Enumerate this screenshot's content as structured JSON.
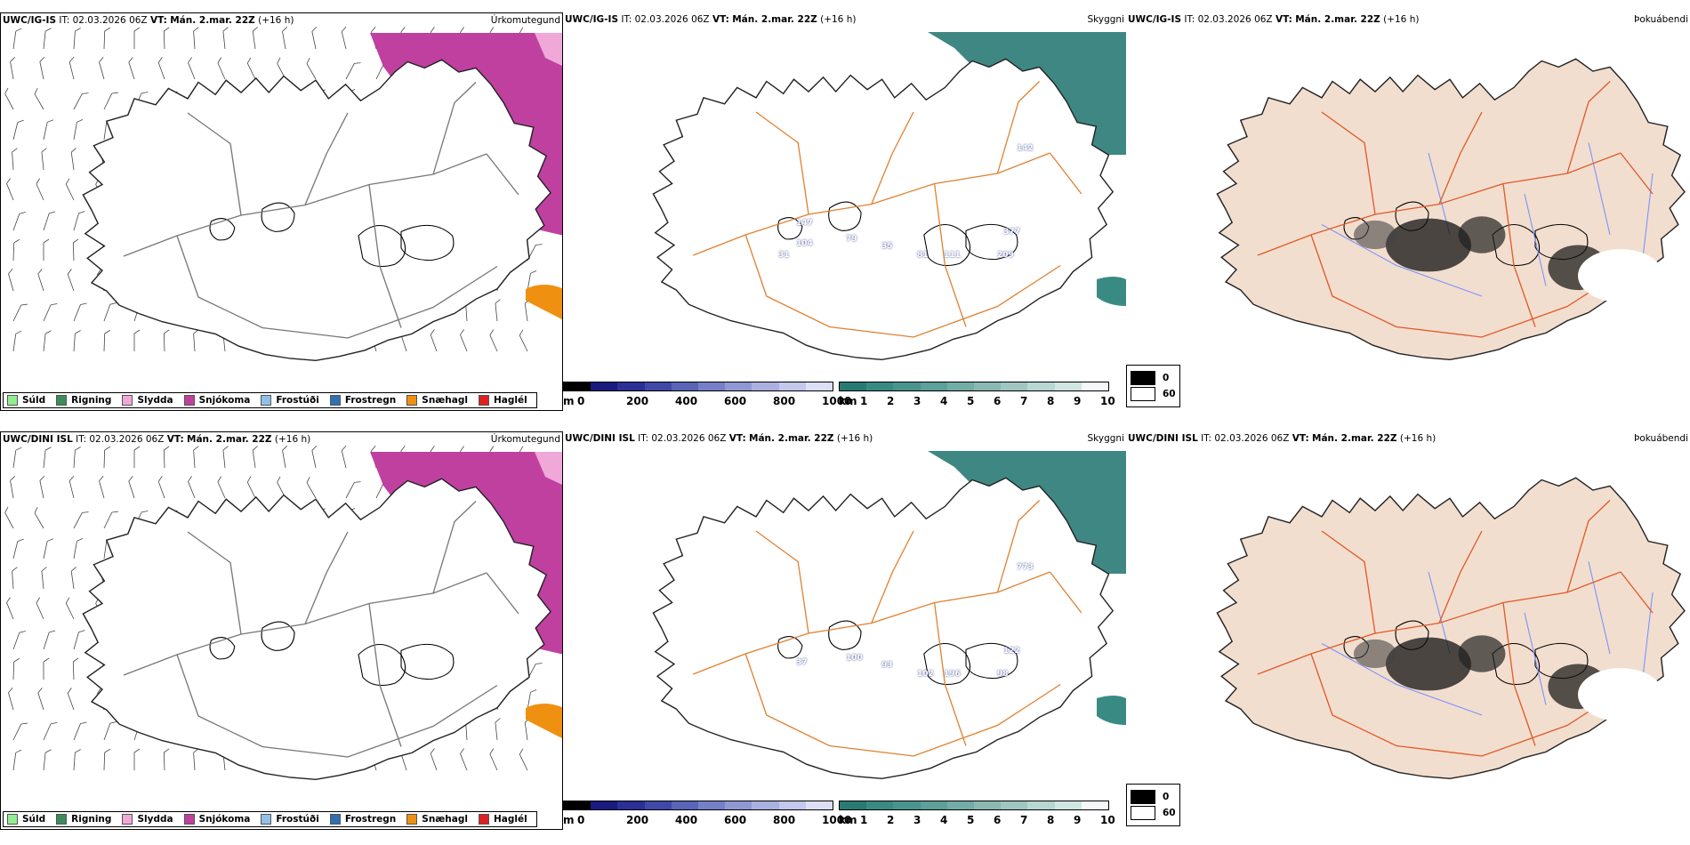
{
  "rows": [
    {
      "model": "UWC/IG-IS",
      "it_label": "IT:",
      "it_value": "02.03.2026 06Z",
      "vt_label": "VT:",
      "vt_value": "Mán. 2.mar. 22Z",
      "lead": "(+16 h)",
      "visibility_labels": [
        "142",
        "377",
        "209",
        "111",
        "81",
        "35",
        "79",
        "104",
        "31",
        "147"
      ]
    },
    {
      "model": "UWC/DINI ISL",
      "it_label": "IT:",
      "it_value": "02.03.2026 06Z",
      "vt_label": "VT:",
      "vt_value": "Mán. 2.mar. 22Z",
      "lead": "(+16 h)",
      "visibility_labels": [
        "773",
        "122",
        "98",
        "196",
        "102",
        "93",
        "100",
        "37"
      ]
    }
  ],
  "panel_titles": {
    "precip": "Úrkomutegund",
    "cloud": "Skyggni",
    "fog": "Þokuábendi"
  },
  "precip_legend": [
    {
      "label": "Súld",
      "color": "#90ee90"
    },
    {
      "label": "Rigning",
      "color": "#3c8c5a"
    },
    {
      "label": "Slydda",
      "color": "#f0a8d8"
    },
    {
      "label": "Snjókoma",
      "color": "#c040a0"
    },
    {
      "label": "Frostúði",
      "color": "#90c0e8"
    },
    {
      "label": "Frostregn",
      "color": "#3070b0"
    },
    {
      "label": "Snæhagl",
      "color": "#f09010"
    },
    {
      "label": "Haglél",
      "color": "#e02020"
    }
  ],
  "height_scale": {
    "unit": "m",
    "ticks": [
      "0",
      "200",
      "400",
      "600",
      "800",
      "1000"
    ],
    "colors": [
      "#000000",
      "#1a1a80",
      "#2b2f96",
      "#4048a8",
      "#5a64b8",
      "#7680c8",
      "#9098d4",
      "#aab0e0",
      "#c4c8ec",
      "#dcdff6"
    ]
  },
  "vis_scale": {
    "unit": "km",
    "ticks": [
      "1",
      "2",
      "3",
      "4",
      "5",
      "6",
      "7",
      "8",
      "9",
      "10"
    ],
    "colors": [
      "#2a7a74",
      "#3a8a84",
      "#4a948e",
      "#5ea09a",
      "#74aca6",
      "#8ab8b2",
      "#a0c6c2",
      "#b8d6d2",
      "#d0e6e2",
      "#f4f8f8"
    ]
  },
  "fog_scale": {
    "ticks": [
      "0",
      "60"
    ],
    "colors": [
      "#000000",
      "#ffffff"
    ]
  }
}
